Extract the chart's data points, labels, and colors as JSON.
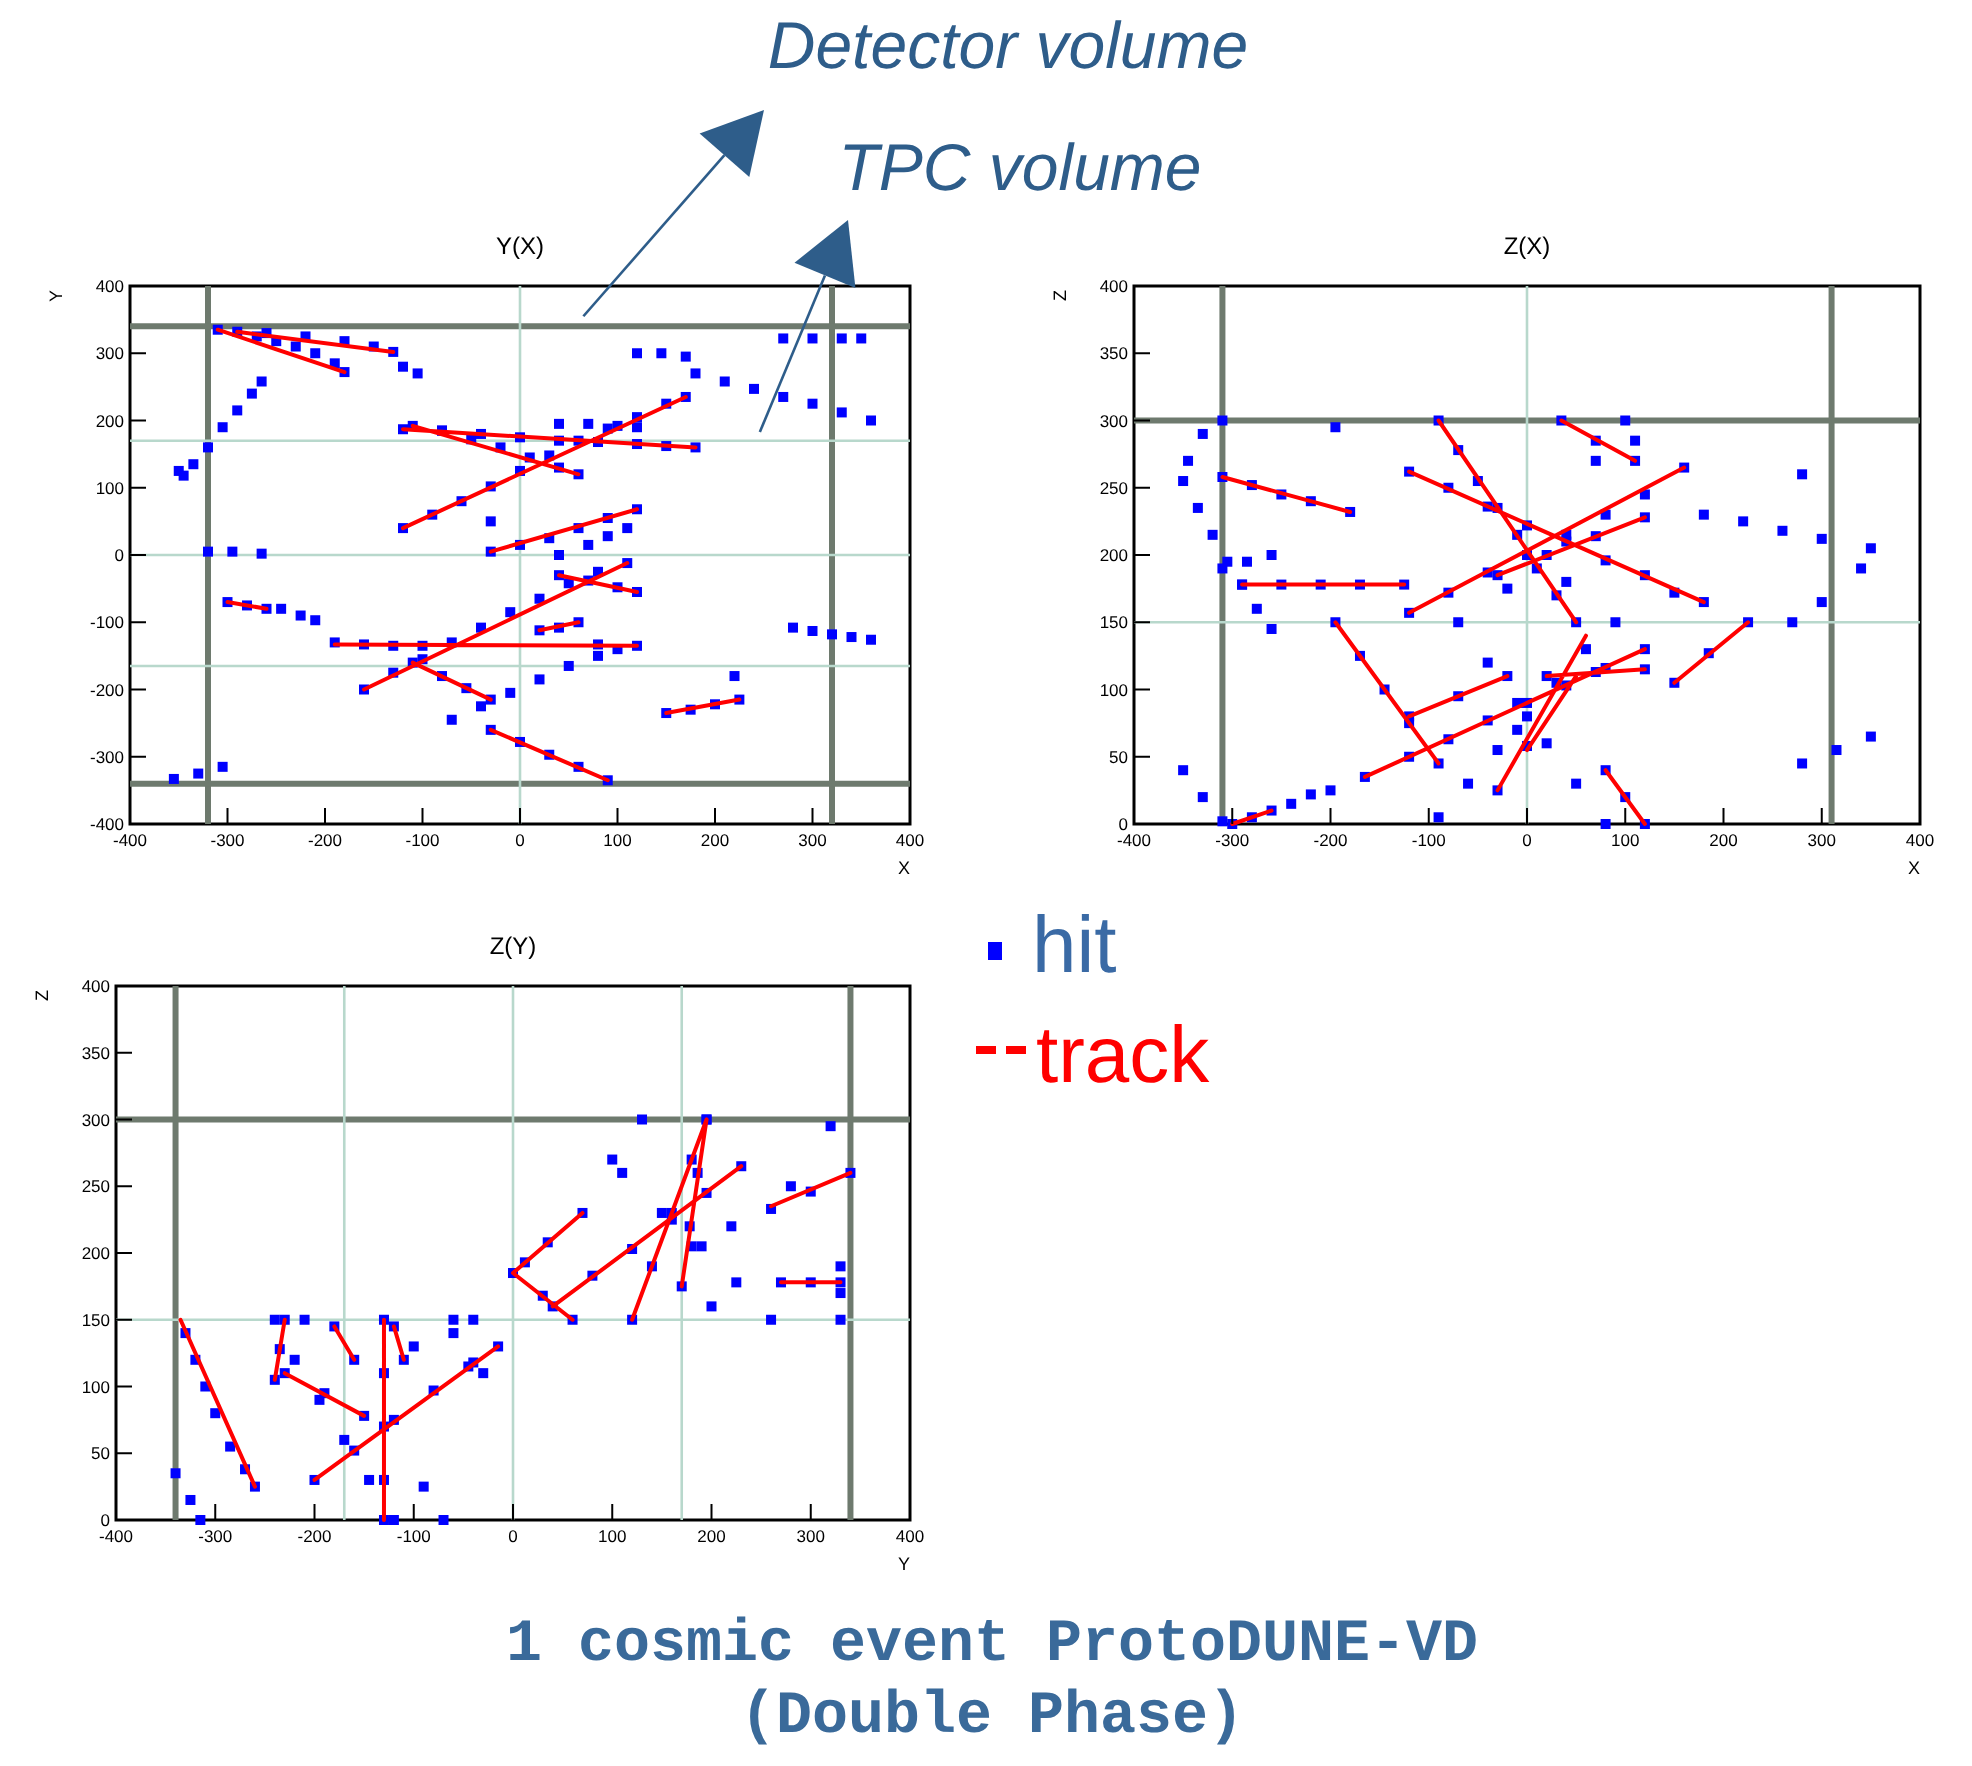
{
  "chart_data": [
    {
      "type": "scatter",
      "title": "Y(X)",
      "xlabel": "X",
      "ylabel": "Y",
      "xlim": [
        -400,
        400
      ],
      "ylim": [
        -400,
        400
      ],
      "xticks": [
        -400,
        -300,
        -200,
        -100,
        0,
        100,
        200,
        300,
        400
      ],
      "yticks": [
        -400,
        -300,
        -200,
        -100,
        0,
        100,
        200,
        300,
        400
      ],
      "ref_lines": [
        {
          "axis": "x",
          "value": -320,
          "color": "#6e7a6e"
        },
        {
          "axis": "x",
          "value": 320,
          "color": "#6e7a6e"
        },
        {
          "axis": "y",
          "value": -340,
          "color": "#6e7a6e"
        },
        {
          "axis": "y",
          "value": 340,
          "color": "#6e7a6e"
        },
        {
          "axis": "x",
          "value": 0,
          "color": "#b8d8cc"
        },
        {
          "axis": "y",
          "value": 170,
          "color": "#b8d8cc"
        },
        {
          "axis": "y",
          "value": 0,
          "color": "#b8d8cc"
        },
        {
          "axis": "y",
          "value": -165,
          "color": "#b8d8cc"
        }
      ],
      "annotations": [
        {
          "text": "Detector volume",
          "x": 65,
          "y": 355
        },
        {
          "text": "TPC volume",
          "x": 246,
          "y": 183
        }
      ],
      "series": [
        {
          "type": "scatter",
          "color": "#0000ff",
          "marker": "square",
          "x": [
            -310,
            -290,
            -270,
            -250,
            -230,
            -210,
            -190,
            -180,
            -260,
            -220,
            -180,
            -150,
            -130,
            -120,
            -105,
            -350,
            -335,
            -320,
            -305,
            -290,
            -275,
            -265,
            -345,
            -320,
            -295,
            -265,
            -300,
            -280,
            -260,
            -245,
            -225,
            -210,
            -120,
            -90,
            -60,
            -30,
            0,
            30,
            60,
            90,
            120,
            150,
            170,
            -120,
            -80,
            -40,
            0,
            40,
            80,
            120,
            150,
            180,
            -110,
            -80,
            -50,
            -20,
            10,
            40,
            60,
            40,
            70,
            100,
            120,
            -30,
            0,
            30,
            60,
            90,
            120,
            70,
            90,
            110,
            -160,
            -130,
            -100,
            -70,
            -40,
            -10,
            20,
            50,
            80,
            110,
            -190,
            -160,
            -130,
            -100,
            80,
            120,
            -110,
            -80,
            -55,
            -30,
            -70,
            -40,
            -10,
            20,
            50,
            80,
            100,
            -30,
            0,
            30,
            60,
            90,
            150,
            175,
            200,
            225,
            280,
            300,
            320,
            340,
            360,
            180,
            210,
            240,
            270,
            300,
            330,
            360,
            120,
            145,
            170,
            270,
            300,
            330,
            350,
            -355,
            -330,
            -305,
            20,
            40,
            60,
            40,
            70,
            100,
            120,
            -30,
            220,
            40
          ],
          "values": [
            335,
            332,
            325,
            318,
            310,
            300,
            285,
            272,
            330,
            325,
            318,
            310,
            302,
            280,
            270,
            125,
            135,
            160,
            190,
            215,
            240,
            258,
            118,
            5,
            5,
            2,
            -70,
            -75,
            -80,
            -80,
            -90,
            -97,
            40,
            60,
            80,
            102,
            125,
            148,
            170,
            188,
            205,
            225,
            235,
            187,
            185,
            180,
            175,
            170,
            168,
            165,
            162,
            160,
            192,
            185,
            172,
            160,
            145,
            130,
            120,
            195,
            195,
            192,
            190,
            5,
            15,
            25,
            40,
            55,
            68,
            15,
            28,
            40,
            -200,
            -175,
            -155,
            -130,
            -108,
            -85,
            -65,
            -42,
            -25,
            -12,
            -130,
            -133,
            -135,
            -135,
            -133,
            -135,
            -160,
            -180,
            -198,
            -215,
            -245,
            -225,
            -205,
            -185,
            -165,
            -150,
            -140,
            -260,
            -278,
            -297,
            -315,
            -335,
            -235,
            -230,
            -222,
            -215,
            -108,
            -113,
            -118,
            -122,
            -126,
            270,
            258,
            247,
            235,
            225,
            212,
            200,
            300,
            300,
            295,
            322,
            322,
            322,
            322,
            -333,
            -325,
            -315,
            -112,
            -108,
            -100,
            -30,
            -38,
            -48,
            -55,
            50,
            -180,
            0
          ]
        },
        {
          "type": "line",
          "color": "#ff0000",
          "x": [
            -310,
            -180,
            null,
            -290,
            -130,
            null,
            -300,
            -260,
            null,
            -120,
            170,
            null,
            -120,
            180,
            null,
            -110,
            60,
            null,
            -30,
            120,
            null,
            -160,
            110,
            null,
            -190,
            120,
            null,
            -110,
            -30,
            null,
            -30,
            90,
            null,
            150,
            225,
            null,
            20,
            60,
            null,
            40,
            120
          ],
          "values": [
            335,
            272,
            null,
            332,
            302,
            null,
            -70,
            -80,
            null,
            40,
            235,
            null,
            187,
            160,
            null,
            192,
            120,
            null,
            5,
            68,
            null,
            -200,
            -12,
            null,
            -133,
            -135,
            null,
            -160,
            -215,
            null,
            -260,
            -335,
            null,
            -235,
            -215,
            null,
            -112,
            -100,
            null,
            -30,
            -55
          ]
        }
      ]
    },
    {
      "type": "scatter",
      "title": "Z(X)",
      "xlabel": "X",
      "ylabel": "Z",
      "xlim": [
        -400,
        400
      ],
      "ylim": [
        0,
        400
      ],
      "xticks": [
        -400,
        -300,
        -200,
        -100,
        0,
        100,
        200,
        300,
        400
      ],
      "yticks": [
        0,
        50,
        100,
        150,
        200,
        250,
        300,
        350,
        400
      ],
      "ref_lines": [
        {
          "axis": "x",
          "value": -310,
          "color": "#6e7a6e"
        },
        {
          "axis": "x",
          "value": 310,
          "color": "#6e7a6e"
        },
        {
          "axis": "y",
          "value": 300,
          "color": "#6e7a6e"
        },
        {
          "axis": "x",
          "value": 0,
          "color": "#b8d8cc"
        },
        {
          "axis": "y",
          "value": 150,
          "color": "#b8d8cc"
        }
      ],
      "series": [
        {
          "type": "scatter",
          "color": "#0000ff",
          "marker": "square",
          "x": [
            -310,
            -280,
            -250,
            -220,
            -180,
            -290,
            -250,
            -210,
            -170,
            -125,
            -350,
            -335,
            -320,
            -305,
            -290,
            -275,
            -260,
            -345,
            -330,
            -310,
            -310,
            -285,
            -260,
            -350,
            -330,
            -310,
            -300,
            -280,
            -260,
            -240,
            -220,
            -200,
            -90,
            -70,
            -50,
            -30,
            -10,
            10,
            30,
            50,
            -120,
            -80,
            -40,
            0,
            40,
            80,
            120,
            150,
            180,
            -120,
            -80,
            -40,
            0,
            40,
            80,
            120,
            160,
            -30,
            20,
            70,
            120,
            -195,
            -170,
            -145,
            -120,
            -90,
            -120,
            -70,
            -20,
            -165,
            -120,
            -80,
            -40,
            0,
            40,
            80,
            120,
            -70,
            -40,
            -10,
            20,
            50,
            80,
            -90,
            -60,
            -30,
            0,
            30,
            60,
            90,
            -30,
            0,
            35,
            70,
            110,
            80,
            100,
            120,
            150,
            185,
            225,
            180,
            220,
            260,
            300,
            350,
            280,
            315,
            350,
            270,
            300,
            340,
            20,
            70,
            120,
            100,
            110,
            -195,
            -20,
            70,
            40,
            280,
            -10
          ],
          "values": [
            258,
            252,
            245,
            240,
            232,
            178,
            178,
            178,
            178,
            178,
            255,
            235,
            215,
            195,
            178,
            160,
            145,
            270,
            290,
            300,
            190,
            195,
            200,
            40,
            20,
            2,
            0,
            5,
            10,
            15,
            22,
            25,
            300,
            278,
            255,
            235,
            215,
            190,
            170,
            150,
            262,
            250,
            236,
            222,
            210,
            196,
            185,
            172,
            165,
            157,
            172,
            187,
            200,
            215,
            230,
            245,
            265,
            185,
            200,
            214,
            228,
            150,
            125,
            100,
            75,
            45,
            80,
            95,
            110,
            35,
            50,
            63,
            77,
            90,
            103,
            116,
            130,
            150,
            120,
            90,
            60,
            30,
            0,
            5,
            30,
            55,
            80,
            105,
            130,
            150,
            25,
            58,
            300,
            285,
            270,
            40,
            20,
            0,
            105,
            127,
            150,
            230,
            225,
            218,
            212,
            205,
            45,
            55,
            65,
            150,
            165,
            190,
            110,
            113,
            115,
            300,
            285,
            295,
            175,
            270,
            180,
            260,
            70
          ]
        },
        {
          "type": "line",
          "color": "#ff0000",
          "x": [
            -310,
            -180,
            null,
            -290,
            -125,
            null,
            -300,
            -260,
            null,
            -90,
            50,
            null,
            -120,
            180,
            null,
            -120,
            160,
            null,
            -30,
            120,
            null,
            -195,
            -90,
            null,
            -120,
            -20,
            null,
            -165,
            120,
            null,
            0,
            50,
            null,
            -30,
            60,
            null,
            35,
            110,
            null,
            80,
            120,
            null,
            150,
            225,
            null,
            20,
            120
          ],
          "values": [
            258,
            232,
            null,
            178,
            178,
            null,
            0,
            10,
            null,
            300,
            150,
            null,
            262,
            165,
            null,
            157,
            265,
            null,
            185,
            228,
            null,
            150,
            45,
            null,
            80,
            110,
            null,
            35,
            130,
            null,
            55,
            110,
            null,
            25,
            140,
            null,
            300,
            270,
            null,
            40,
            0,
            null,
            105,
            150,
            null,
            110,
            115
          ]
        }
      ]
    },
    {
      "type": "scatter",
      "title": "Z(Y)",
      "xlabel": "Y",
      "ylabel": "Z",
      "xlim": [
        -400,
        400
      ],
      "ylim": [
        0,
        400
      ],
      "xticks": [
        -400,
        -300,
        -200,
        -100,
        0,
        100,
        200,
        300,
        400
      ],
      "yticks": [
        0,
        50,
        100,
        150,
        200,
        250,
        300,
        350,
        400
      ],
      "legend": "right",
      "annotations": [
        "1 cosmic event ProtoDUNE-VD",
        "(Double Phase)"
      ],
      "ref_lines": [
        {
          "axis": "x",
          "value": -340,
          "color": "#6e7a6e"
        },
        {
          "axis": "x",
          "value": 340,
          "color": "#6e7a6e"
        },
        {
          "axis": "y",
          "value": 300,
          "color": "#6e7a6e"
        },
        {
          "axis": "x",
          "value": -170,
          "color": "#b8d8cc"
        },
        {
          "axis": "x",
          "value": 0,
          "color": "#b8d8cc"
        },
        {
          "axis": "x",
          "value": 170,
          "color": "#b8d8cc"
        },
        {
          "axis": "y",
          "value": 150,
          "color": "#b8d8cc"
        }
      ],
      "series": [
        {
          "name": "hit",
          "type": "scatter",
          "color": "#0000ff",
          "marker": "square",
          "x": [
            -330,
            -320,
            -310,
            -300,
            -285,
            -270,
            -260,
            -340,
            -325,
            -315,
            -230,
            -235,
            -240,
            -230,
            -190,
            -150,
            -220,
            -195,
            -170,
            -145,
            -120,
            -200,
            -160,
            -120,
            -80,
            -40,
            -15,
            -130,
            -130,
            -130,
            -130,
            -130,
            -180,
            -160,
            -120,
            -110,
            -60,
            -30,
            -45,
            -90,
            -70,
            0,
            30,
            60,
            12,
            35,
            70,
            40,
            80,
            120,
            160,
            195,
            230,
            120,
            140,
            160,
            180,
            195,
            170,
            178,
            186,
            195,
            110,
            150,
            190,
            225,
            260,
            180,
            220,
            260,
            300,
            340,
            270,
            300,
            330,
            320,
            330,
            330,
            330,
            -240,
            -210,
            -60,
            -40,
            130,
            100,
            -100,
            280,
            200
          ],
          "values": [
            140,
            120,
            100,
            80,
            55,
            38,
            25,
            35,
            15,
            0,
            150,
            128,
            105,
            110,
            95,
            78,
            120,
            90,
            60,
            30,
            0,
            30,
            52,
            75,
            97,
            118,
            130,
            150,
            110,
            70,
            30,
            0,
            145,
            120,
            145,
            120,
            140,
            110,
            115,
            25,
            0,
            185,
            168,
            150,
            193,
            208,
            230,
            160,
            183,
            203,
            225,
            245,
            265,
            150,
            190,
            230,
            270,
            300,
            175,
            220,
            260,
            300,
            260,
            230,
            205,
            178,
            150,
            205,
            220,
            233,
            246,
            260,
            178,
            178,
            178,
            295,
            150,
            170,
            190,
            150,
            150,
            150,
            150,
            300,
            270,
            130,
            250,
            160
          ]
        },
        {
          "name": "track",
          "type": "line",
          "color": "#ff0000",
          "x": [
            -335,
            -260,
            null,
            -230,
            -240,
            null,
            -230,
            -150,
            null,
            -200,
            -15,
            null,
            -130,
            -130,
            null,
            -180,
            -160,
            null,
            -120,
            -110,
            null,
            0,
            60,
            null,
            0,
            70,
            null,
            40,
            230,
            null,
            120,
            195,
            null,
            170,
            195,
            null,
            260,
            340,
            null,
            270,
            330
          ],
          "values": [
            150,
            25,
            null,
            150,
            105,
            null,
            110,
            78,
            null,
            30,
            130,
            null,
            150,
            0,
            null,
            145,
            120,
            null,
            145,
            120,
            null,
            185,
            150,
            null,
            185,
            230,
            null,
            160,
            265,
            null,
            150,
            300,
            null,
            175,
            300,
            null,
            235,
            260,
            null,
            178,
            178
          ]
        }
      ]
    }
  ]
}
